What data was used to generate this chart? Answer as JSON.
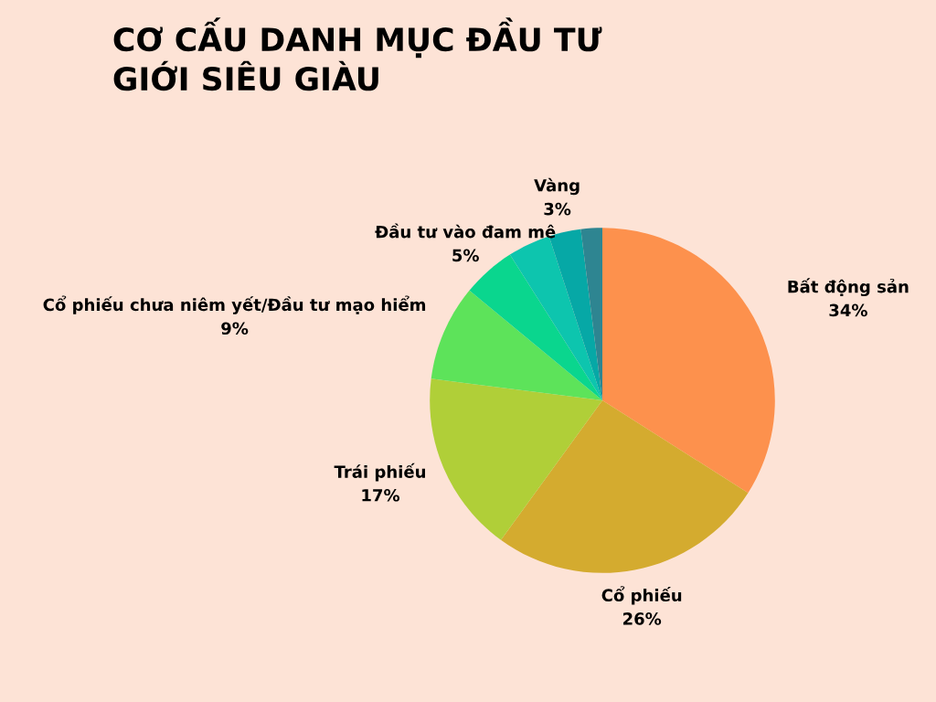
{
  "chart_data": {
    "type": "pie",
    "title": "CƠ CẤU DANH MỤC ĐẦU TƯ\nGIỚI SIÊU GIÀU",
    "categories": [
      "Bất động sản",
      "Cổ phiếu",
      "Trái phiếu",
      "Cổ phiếu chưa niêm yết/Đầu tư mạo hiểm",
      "Đầu tư vào đam mê",
      null,
      "Vàng",
      null
    ],
    "values": [
      34,
      26,
      17,
      9,
      5,
      4,
      3,
      2
    ],
    "value_labels": [
      "34%",
      "26%",
      "17%",
      "9%",
      "5%",
      null,
      "3%",
      null
    ],
    "colors": [
      "#fd914d",
      "#d4ab2f",
      "#b0cf38",
      "#5de35a",
      "#0ad68e",
      "#0dc5ae",
      "#06a8a6",
      "#2e8591"
    ]
  }
}
